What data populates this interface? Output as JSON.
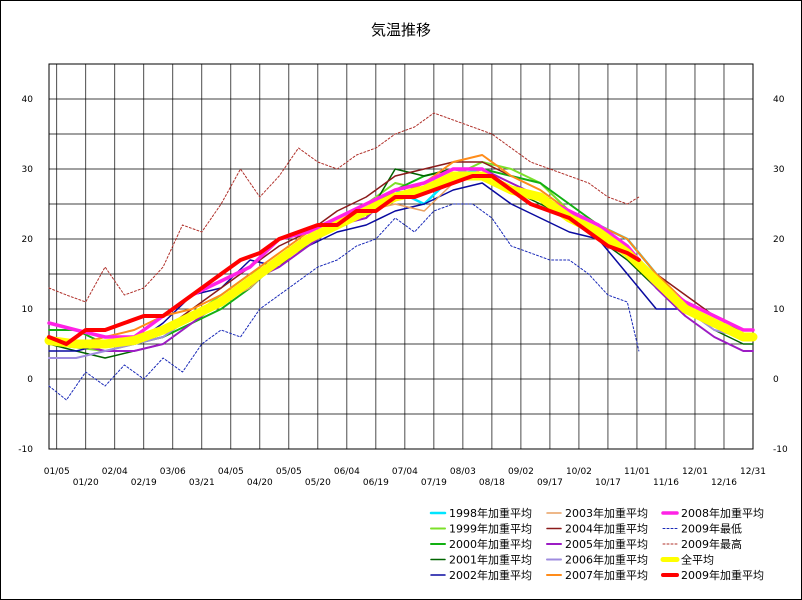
{
  "chart_data": {
    "type": "line",
    "title": "気温推移",
    "xlabel": "",
    "ylabel": "",
    "ylim": [
      -10,
      45
    ],
    "y_ticks": [
      "-10",
      "0",
      "10",
      "20",
      "30",
      "40"
    ],
    "y_tick_values": [
      -10,
      0,
      10,
      20,
      30,
      40
    ],
    "x_ticks_top": [
      "01/05",
      "02/04",
      "03/06",
      "04/05",
      "05/05",
      "06/04",
      "07/04",
      "08/03",
      "09/02",
      "10/02",
      "11/01",
      "12/01",
      "12/31"
    ],
    "x_ticks_bottom": [
      "01/20",
      "02/19",
      "03/21",
      "04/20",
      "05/20",
      "06/19",
      "07/19",
      "08/18",
      "09/17",
      "10/17",
      "11/16",
      "12/16"
    ],
    "x_top_days": [
      5,
      35,
      65,
      95,
      125,
      155,
      185,
      215,
      245,
      275,
      305,
      335,
      365
    ],
    "x_bottom_days": [
      20,
      50,
      80,
      110,
      140,
      170,
      200,
      230,
      260,
      290,
      320,
      350
    ],
    "grid": true,
    "legend_position": "bottom-right",
    "legend_columns": [
      [
        "1998年加重平均",
        "1999年加重平均",
        "2000年加重平均",
        "2001年加重平均",
        "2002年加重平均"
      ],
      [
        "2003年加重平均",
        "2004年加重平均",
        "2005年加重平均",
        "2006年加重平均",
        "2007年加重平均"
      ],
      [
        "2008年加重平均",
        "2009年最低",
        "2009年最高",
        "全平均",
        "2009年加重平均"
      ]
    ],
    "series": [
      {
        "name": "1998年加重平均",
        "color": "#00e5ff",
        "width": 2.5,
        "dash": "",
        "x": [
          1,
          15,
          30,
          45,
          60,
          75,
          90,
          105,
          120,
          135,
          150,
          165,
          180,
          195,
          210,
          225,
          240,
          255,
          270,
          285,
          300,
          315,
          330,
          345,
          360,
          365
        ],
        "y": [
          5.5,
          5,
          5,
          6,
          7,
          9,
          11,
          14,
          17,
          20,
          22,
          24,
          27,
          25,
          29,
          30,
          27,
          26,
          24,
          22,
          20,
          15,
          10,
          8,
          7,
          7
        ]
      },
      {
        "name": "1999年加重平均",
        "color": "#7ce02a",
        "width": 2,
        "dash": "",
        "x": [
          1,
          15,
          30,
          45,
          60,
          75,
          90,
          105,
          120,
          135,
          150,
          165,
          180,
          195,
          210,
          225,
          240,
          255,
          270,
          285,
          300,
          315,
          330,
          345,
          360,
          365
        ],
        "y": [
          5,
          4.5,
          4,
          5,
          6,
          9,
          12,
          15,
          17,
          20,
          23,
          25,
          28,
          27,
          29,
          31,
          30,
          28,
          24,
          21,
          19,
          14,
          11,
          8,
          6,
          6
        ]
      },
      {
        "name": "2000年加重平均",
        "color": "#12b012",
        "width": 2,
        "dash": "",
        "x": [
          1,
          15,
          30,
          45,
          60,
          75,
          90,
          105,
          120,
          135,
          150,
          165,
          180,
          195,
          210,
          225,
          240,
          255,
          270,
          285,
          300,
          315,
          330,
          345,
          360,
          365
        ],
        "y": [
          7,
          7,
          5,
          5,
          6,
          8,
          10,
          13,
          17,
          19,
          22,
          24,
          27,
          29,
          30,
          30,
          29,
          28,
          25,
          22,
          19,
          14,
          10,
          8,
          6,
          6
        ]
      },
      {
        "name": "2001年加重平均",
        "color": "#006400",
        "width": 1.5,
        "dash": "",
        "x": [
          1,
          15,
          30,
          45,
          60,
          75,
          90,
          105,
          120,
          135,
          150,
          165,
          180,
          195,
          210,
          225,
          240,
          255,
          270,
          285,
          300,
          315,
          330,
          345,
          360,
          365
        ],
        "y": [
          5,
          4,
          3,
          4,
          5,
          8,
          11,
          14,
          16,
          20,
          22,
          23,
          30,
          29,
          30,
          29,
          27,
          25,
          23,
          20,
          17,
          13,
          10,
          7,
          5,
          5
        ]
      },
      {
        "name": "2002年加重平均",
        "color": "#0a0aa0",
        "width": 1.5,
        "dash": "",
        "x": [
          1,
          15,
          30,
          45,
          60,
          75,
          90,
          105,
          120,
          135,
          150,
          165,
          180,
          195,
          210,
          225,
          240,
          255,
          270,
          285,
          300,
          315,
          330,
          345,
          360,
          365
        ],
        "y": [
          4,
          4,
          5,
          5,
          8,
          12,
          13,
          17,
          16,
          19,
          21,
          22,
          24,
          25,
          27,
          28,
          25,
          23,
          21,
          20,
          15,
          10,
          10,
          8,
          7,
          7
        ]
      },
      {
        "name": "2003年加重平均",
        "color": "#e9a062",
        "width": 1.5,
        "dash": "",
        "x": [
          1,
          15,
          30,
          45,
          60,
          75,
          90,
          105,
          120,
          135,
          150,
          165,
          180,
          195,
          210,
          225,
          240,
          255,
          270,
          285,
          300,
          315,
          330,
          345,
          360,
          365
        ],
        "y": [
          5,
          5,
          4,
          5,
          6,
          9,
          11,
          13,
          17,
          20,
          22,
          24,
          25,
          24,
          28,
          30,
          28,
          26,
          24,
          21,
          18,
          14,
          11,
          8,
          6,
          6
        ]
      },
      {
        "name": "2004年加重平均",
        "color": "#8b1a1a",
        "width": 1.5,
        "dash": "",
        "x": [
          1,
          15,
          30,
          45,
          60,
          75,
          90,
          105,
          120,
          135,
          150,
          165,
          180,
          195,
          210,
          225,
          240,
          255,
          270,
          285,
          300,
          315,
          330,
          345,
          360,
          365
        ],
        "y": [
          6,
          5,
          6,
          6,
          7,
          10,
          13,
          16,
          19,
          21,
          24,
          26,
          29,
          30,
          31,
          31,
          29,
          27,
          24,
          22,
          20,
          15,
          12,
          9,
          7,
          7
        ]
      },
      {
        "name": "2005年加重平均",
        "color": "#9c1cc4",
        "width": 2,
        "dash": "",
        "x": [
          1,
          15,
          30,
          45,
          60,
          75,
          90,
          105,
          120,
          135,
          150,
          165,
          180,
          195,
          210,
          225,
          240,
          255,
          270,
          285,
          300,
          315,
          330,
          345,
          360,
          365
        ],
        "y": [
          5,
          5,
          4,
          4,
          5,
          8,
          11,
          14,
          16,
          19,
          22,
          23,
          27,
          28,
          30,
          30,
          28,
          26,
          24,
          21,
          18,
          13,
          9,
          6,
          4,
          4
        ]
      },
      {
        "name": "2006年加重平均",
        "color": "#9f8cdf",
        "width": 2,
        "dash": "",
        "x": [
          1,
          15,
          30,
          45,
          60,
          75,
          90,
          105,
          120,
          135,
          150,
          165,
          180,
          195,
          210,
          225,
          240,
          255,
          270,
          285,
          300,
          315,
          330,
          345,
          360,
          365
        ],
        "y": [
          3,
          3,
          4,
          5,
          6,
          9,
          11,
          14,
          17,
          20,
          22,
          24,
          26,
          28,
          30,
          29,
          27,
          26,
          23,
          21,
          18,
          14,
          10,
          7,
          6,
          6
        ]
      },
      {
        "name": "2007年加重平均",
        "color": "#ff8c1a",
        "width": 2,
        "dash": "",
        "x": [
          1,
          15,
          30,
          45,
          60,
          75,
          90,
          105,
          120,
          135,
          150,
          165,
          180,
          195,
          210,
          225,
          240,
          255,
          270,
          285,
          300,
          315,
          330,
          345,
          360,
          365
        ],
        "y": [
          6,
          5,
          6,
          7,
          9,
          10,
          12,
          15,
          18,
          21,
          23,
          25,
          26,
          28,
          31,
          32,
          29,
          27,
          24,
          22,
          20,
          15,
          11,
          9,
          7,
          7
        ]
      },
      {
        "name": "2008年加重平均",
        "color": "#ff22e6",
        "width": 3.5,
        "dash": "",
        "x": [
          1,
          15,
          30,
          45,
          60,
          75,
          90,
          105,
          120,
          135,
          150,
          165,
          180,
          195,
          210,
          225,
          240,
          255,
          270,
          285,
          300,
          315,
          330,
          345,
          360,
          365
        ],
        "y": [
          8,
          7,
          6,
          6,
          9,
          12,
          14,
          16,
          20,
          21,
          23,
          25,
          27,
          28,
          30,
          30,
          27,
          26,
          24,
          22,
          19,
          14,
          11,
          9,
          7,
          7
        ]
      },
      {
        "name": "2009年最低",
        "color": "#1a2ab8",
        "width": 1,
        "dash": "2,2",
        "x": [
          1,
          10,
          20,
          30,
          40,
          50,
          60,
          70,
          80,
          90,
          100,
          110,
          120,
          130,
          140,
          150,
          160,
          170,
          180,
          190,
          200,
          210,
          220,
          230,
          240,
          250,
          260,
          270,
          280,
          290,
          300,
          306
        ],
        "y": [
          -1,
          -3,
          1,
          -1,
          2,
          0,
          3,
          1,
          5,
          7,
          6,
          10,
          12,
          14,
          16,
          17,
          19,
          20,
          23,
          21,
          24,
          25,
          25,
          23,
          19,
          18,
          17,
          17,
          15,
          12,
          11,
          4
        ]
      },
      {
        "name": "2009年最高",
        "color": "#b0302a",
        "width": 1,
        "dash": "2,2",
        "x": [
          1,
          10,
          20,
          30,
          40,
          50,
          60,
          70,
          80,
          90,
          100,
          110,
          120,
          130,
          140,
          150,
          160,
          170,
          180,
          190,
          200,
          210,
          220,
          230,
          240,
          250,
          260,
          270,
          280,
          290,
          300,
          306
        ],
        "y": [
          13,
          12,
          11,
          16,
          12,
          13,
          16,
          22,
          21,
          25,
          30,
          26,
          29,
          33,
          31,
          30,
          32,
          33,
          35,
          36,
          38,
          37,
          36,
          35,
          33,
          31,
          30,
          29,
          28,
          26,
          25,
          26
        ]
      },
      {
        "name": "全平均",
        "color": "#ffff00",
        "width": 9,
        "dash": "",
        "x": [
          1,
          15,
          30,
          45,
          60,
          75,
          90,
          105,
          120,
          135,
          150,
          165,
          180,
          195,
          210,
          225,
          240,
          255,
          270,
          285,
          300,
          315,
          330,
          345,
          360,
          365
        ],
        "y": [
          5.5,
          5,
          5,
          5.5,
          7,
          9,
          11,
          14,
          17,
          20,
          22,
          24,
          26,
          27,
          29,
          29,
          27,
          26,
          23,
          21,
          18,
          14,
          10,
          8,
          6,
          6
        ]
      },
      {
        "name": "2009年加重平均",
        "color": "#ff0000",
        "width": 4,
        "dash": "",
        "x": [
          1,
          10,
          20,
          30,
          40,
          50,
          60,
          70,
          80,
          90,
          100,
          110,
          120,
          130,
          140,
          150,
          160,
          170,
          180,
          190,
          200,
          210,
          220,
          230,
          240,
          250,
          260,
          270,
          280,
          290,
          300,
          306
        ],
        "y": [
          6,
          5,
          7,
          7,
          8,
          9,
          9,
          11,
          13,
          15,
          17,
          18,
          20,
          21,
          22,
          22,
          24,
          24,
          26,
          26,
          27,
          28,
          29,
          29,
          27,
          25,
          24,
          23,
          21,
          19,
          18,
          17
        ]
      }
    ]
  }
}
